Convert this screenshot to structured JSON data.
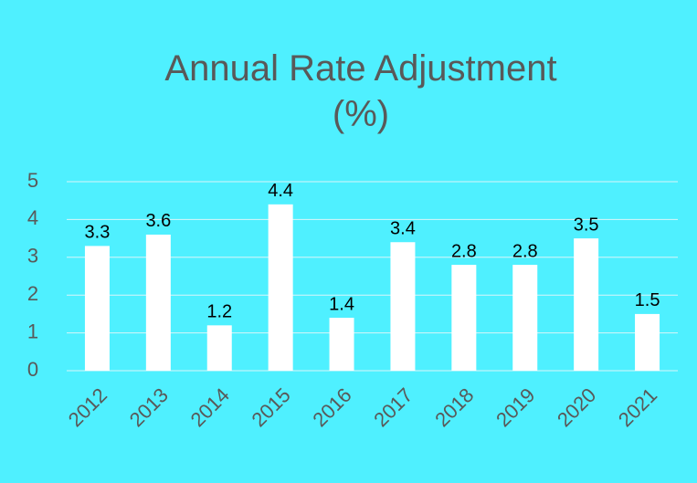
{
  "chart_data": {
    "type": "bar",
    "title": "Annual Rate Adjustment (%)",
    "categories": [
      "2012",
      "2013",
      "2014",
      "2015",
      "2016",
      "2017",
      "2018",
      "2019",
      "2020",
      "2021"
    ],
    "values": [
      3.3,
      3.6,
      1.2,
      4.4,
      1.4,
      3.4,
      2.8,
      2.8,
      3.5,
      1.5
    ],
    "color": "#ffffff",
    "ylim": [
      0,
      5
    ],
    "yticks": [
      0,
      1,
      2,
      3,
      4,
      5
    ],
    "grid": true
  }
}
